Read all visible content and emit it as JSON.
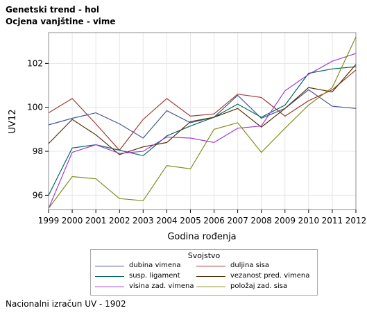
{
  "titles": {
    "line1": "Genetski trend - hol",
    "line2": "Ocjena vanjštine - vime"
  },
  "legend": {
    "title": "Svojstvo"
  },
  "footnote": "Nacionalni izračun UV - 1902",
  "chart_data": {
    "type": "line",
    "xlabel": "Godina rođenja",
    "ylabel": "UV12",
    "x": [
      1999,
      2000,
      2001,
      2002,
      2003,
      2004,
      2005,
      2006,
      2007,
      2008,
      2009,
      2010,
      2011,
      2012
    ],
    "xlim": [
      1999,
      2012
    ],
    "ylim": [
      95.35,
      103.4
    ],
    "yticks": [
      96,
      98,
      100,
      102
    ],
    "grid": true,
    "legend_position": "bottom",
    "series": [
      {
        "name": "dubina vimena",
        "color": "#445694",
        "values": [
          99.2,
          99.5,
          99.75,
          99.25,
          98.6,
          99.85,
          99.3,
          99.55,
          100.55,
          99.5,
          99.95,
          100.8,
          100.05,
          99.95
        ]
      },
      {
        "name": "duljina sisa",
        "color": "#a23a2e",
        "values": [
          99.75,
          100.4,
          99.25,
          98.05,
          99.45,
          100.4,
          99.6,
          99.7,
          100.6,
          100.45,
          99.6,
          100.3,
          100.8,
          101.7
        ]
      },
      {
        "name": "susp. ligament",
        "color": "#01665e",
        "values": [
          96.0,
          98.15,
          98.3,
          98.05,
          97.8,
          98.7,
          99.15,
          99.55,
          100.15,
          99.55,
          100.1,
          101.55,
          101.75,
          101.85
        ]
      },
      {
        "name": "vezanost pred. vimena",
        "color": "#543005",
        "values": [
          98.35,
          99.45,
          98.75,
          97.85,
          98.2,
          98.4,
          99.35,
          99.55,
          99.95,
          99.1,
          99.95,
          100.9,
          100.7,
          101.95
        ]
      },
      {
        "name": "visina zad. vimena",
        "color": "#9d3cdb",
        "values": [
          95.4,
          97.95,
          98.3,
          97.9,
          98.0,
          98.65,
          98.6,
          98.4,
          99.05,
          99.15,
          100.75,
          101.5,
          102.1,
          102.45
        ]
      },
      {
        "name": "položaj zad. sisa",
        "color": "#7f8e1f",
        "values": [
          95.4,
          96.85,
          96.75,
          95.85,
          95.75,
          97.35,
          97.2,
          99.0,
          99.3,
          97.95,
          99.05,
          100.1,
          100.9,
          103.2
        ]
      }
    ]
  }
}
